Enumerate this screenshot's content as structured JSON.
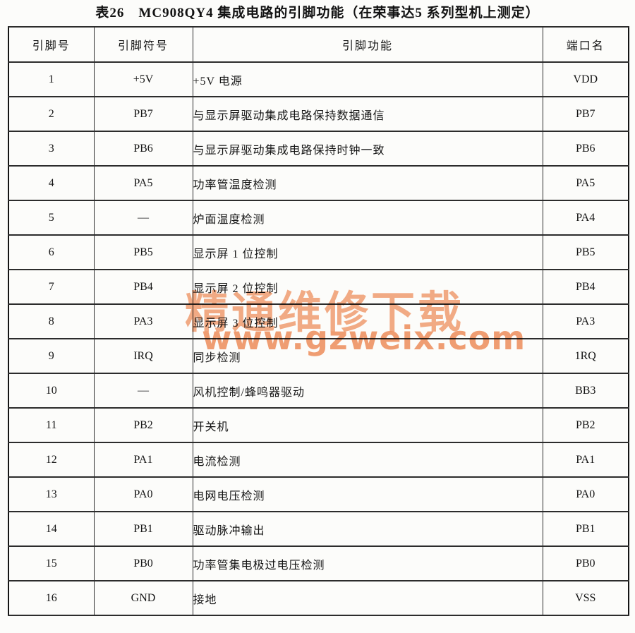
{
  "page": {
    "title": "表26　MC908QY4 集成电路的引脚功能（在荣事达5 系列型机上测定）"
  },
  "table": {
    "headers": [
      "引脚号",
      "引脚符号",
      "引脚功能",
      "端口名"
    ],
    "rows": [
      {
        "pin": "1",
        "symbol": "+5V",
        "function": "+5V 电源",
        "port": "VDD"
      },
      {
        "pin": "2",
        "symbol": "PB7",
        "function": "与显示屏驱动集成电路保持数据通信",
        "port": "PB7"
      },
      {
        "pin": "3",
        "symbol": "PB6",
        "function": "与显示屏驱动集成电路保持时钟一致",
        "port": "PB6"
      },
      {
        "pin": "4",
        "symbol": "PA5",
        "function": "功率管温度检测",
        "port": "PA5"
      },
      {
        "pin": "5",
        "symbol": "—",
        "function": "炉面温度检测",
        "port": "PA4"
      },
      {
        "pin": "6",
        "symbol": "PB5",
        "function": "显示屏 1 位控制",
        "port": "PB5"
      },
      {
        "pin": "7",
        "symbol": "PB4",
        "function": "显示屏 2 位控制",
        "port": "PB4"
      },
      {
        "pin": "8",
        "symbol": "PA3",
        "function": "显示屏 3 位控制",
        "port": "PA3"
      },
      {
        "pin": "9",
        "symbol": "IRQ",
        "function": "同步检测",
        "port": "1RQ"
      },
      {
        "pin": "10",
        "symbol": "—",
        "function": "风机控制/蜂鸣器驱动",
        "port": "BB3"
      },
      {
        "pin": "11",
        "symbol": "PB2",
        "function": "开关机",
        "port": "PB2"
      },
      {
        "pin": "12",
        "symbol": "PA1",
        "function": "电流检测",
        "port": "PA1"
      },
      {
        "pin": "13",
        "symbol": "PA0",
        "function": "电网电压检测",
        "port": "PA0"
      },
      {
        "pin": "14",
        "symbol": "PB1",
        "function": "驱动脉冲输出",
        "port": "PB1"
      },
      {
        "pin": "15",
        "symbol": "PB0",
        "function": "功率管集电极过电压检测",
        "port": "PB0"
      },
      {
        "pin": "16",
        "symbol": "GND",
        "function": "接地",
        "port": "VSS"
      }
    ]
  },
  "watermark": {
    "line1": "精通维修下载",
    "line2": "www.gzweix.com",
    "accent_color": "#f29e72"
  }
}
